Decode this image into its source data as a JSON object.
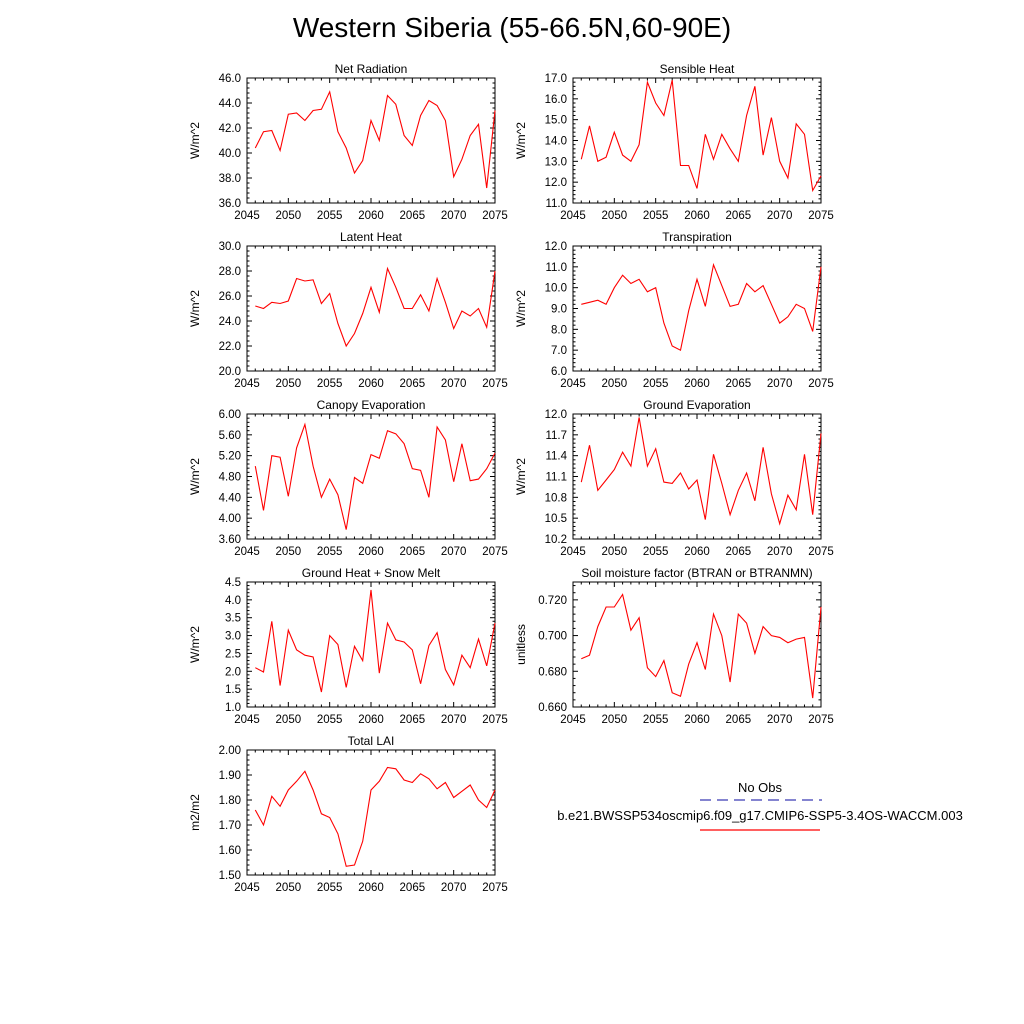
{
  "title": "Western Siberia (55-66.5N,60-90E)",
  "legend": {
    "obs_label": "No Obs",
    "obs_color": "#3b3bb5",
    "model_label": "b.e21.BWSSP534oscmip6.f09_g17.CMIP6-SSP5-3.4OS-WACCM.003",
    "model_color": "#ff0000"
  },
  "chart_data": [
    {
      "type": "line",
      "title": "Net Radiation",
      "ylabel": "W/m^2",
      "xlim": [
        2045,
        2075
      ],
      "ylim": [
        36.0,
        46.0
      ],
      "xticks": [
        2045,
        2050,
        2055,
        2060,
        2065,
        2070,
        2075
      ],
      "yticks": [
        36.0,
        38.0,
        40.0,
        42.0,
        44.0,
        46.0
      ],
      "ytick_labels": [
        "36.0",
        "38.0",
        "40.0",
        "42.0",
        "44.0",
        "46.0"
      ],
      "x": [
        2046,
        2047,
        2048,
        2049,
        2050,
        2051,
        2052,
        2053,
        2054,
        2055,
        2056,
        2057,
        2058,
        2059,
        2060,
        2061,
        2062,
        2063,
        2064,
        2065,
        2066,
        2067,
        2068,
        2069,
        2070,
        2071,
        2072,
        2073,
        2074,
        2075
      ],
      "series": [
        {
          "values": [
            40.4,
            41.7,
            41.8,
            40.2,
            43.1,
            43.2,
            42.6,
            43.4,
            43.5,
            44.9,
            41.7,
            40.4,
            38.4,
            39.4,
            42.6,
            41.0,
            44.6,
            43.9,
            41.4,
            40.6,
            43.0,
            44.2,
            43.8,
            42.6,
            38.1,
            39.5,
            41.4,
            42.3,
            37.2,
            43.4
          ]
        }
      ]
    },
    {
      "type": "line",
      "title": "Sensible Heat",
      "ylabel": "W/m^2",
      "xlim": [
        2045,
        2075
      ],
      "ylim": [
        11.0,
        17.0
      ],
      "xticks": [
        2045,
        2050,
        2055,
        2060,
        2065,
        2070,
        2075
      ],
      "yticks": [
        11.0,
        12.0,
        13.0,
        14.0,
        15.0,
        16.0,
        17.0
      ],
      "ytick_labels": [
        "11.0",
        "12.0",
        "13.0",
        "14.0",
        "15.0",
        "16.0",
        "17.0"
      ],
      "x": [
        2046,
        2047,
        2048,
        2049,
        2050,
        2051,
        2052,
        2053,
        2054,
        2055,
        2056,
        2057,
        2058,
        2059,
        2060,
        2061,
        2062,
        2063,
        2064,
        2065,
        2066,
        2067,
        2068,
        2069,
        2070,
        2071,
        2072,
        2073,
        2074,
        2075
      ],
      "series": [
        {
          "values": [
            13.1,
            14.7,
            13.0,
            13.2,
            14.4,
            13.3,
            13.0,
            13.8,
            16.8,
            15.8,
            15.2,
            16.9,
            12.8,
            12.8,
            11.7,
            14.3,
            13.1,
            14.3,
            13.6,
            13.0,
            15.2,
            16.6,
            13.3,
            15.1,
            13.0,
            12.2,
            14.8,
            14.3,
            11.6,
            12.3
          ]
        }
      ]
    },
    {
      "type": "line",
      "title": "Latent Heat",
      "ylabel": "W/m^2",
      "xlim": [
        2045,
        2075
      ],
      "ylim": [
        20.0,
        30.0
      ],
      "xticks": [
        2045,
        2050,
        2055,
        2060,
        2065,
        2070,
        2075
      ],
      "yticks": [
        20.0,
        22.0,
        24.0,
        26.0,
        28.0,
        30.0
      ],
      "ytick_labels": [
        "20.0",
        "22.0",
        "24.0",
        "26.0",
        "28.0",
        "30.0"
      ],
      "x": [
        2046,
        2047,
        2048,
        2049,
        2050,
        2051,
        2052,
        2053,
        2054,
        2055,
        2056,
        2057,
        2058,
        2059,
        2060,
        2061,
        2062,
        2063,
        2064,
        2065,
        2066,
        2067,
        2068,
        2069,
        2070,
        2071,
        2072,
        2073,
        2074,
        2075
      ],
      "series": [
        {
          "values": [
            25.2,
            25.0,
            25.5,
            25.4,
            25.6,
            27.4,
            27.2,
            27.3,
            25.4,
            26.2,
            23.8,
            22.0,
            23.0,
            24.6,
            26.7,
            24.7,
            28.2,
            26.7,
            25.0,
            25.0,
            26.1,
            24.8,
            27.4,
            25.5,
            23.4,
            24.8,
            24.4,
            25.0,
            23.5,
            28.0
          ]
        }
      ]
    },
    {
      "type": "line",
      "title": "Transpiration",
      "ylabel": "W/m^2",
      "xlim": [
        2045,
        2075
      ],
      "ylim": [
        6.0,
        12.0
      ],
      "xticks": [
        2045,
        2050,
        2055,
        2060,
        2065,
        2070,
        2075
      ],
      "yticks": [
        6.0,
        7.0,
        8.0,
        9.0,
        10.0,
        11.0,
        12.0
      ],
      "ytick_labels": [
        "6.0",
        "7.0",
        "8.0",
        "9.0",
        "10.0",
        "11.0",
        "12.0"
      ],
      "x": [
        2046,
        2047,
        2048,
        2049,
        2050,
        2051,
        2052,
        2053,
        2054,
        2055,
        2056,
        2057,
        2058,
        2059,
        2060,
        2061,
        2062,
        2063,
        2064,
        2065,
        2066,
        2067,
        2068,
        2069,
        2070,
        2071,
        2072,
        2073,
        2074,
        2075
      ],
      "series": [
        {
          "values": [
            9.2,
            9.3,
            9.4,
            9.2,
            10.0,
            10.6,
            10.2,
            10.4,
            9.8,
            10.0,
            8.3,
            7.2,
            7.0,
            8.9,
            10.4,
            9.1,
            11.1,
            10.1,
            9.1,
            9.2,
            10.2,
            9.8,
            10.1,
            9.2,
            8.3,
            8.6,
            9.2,
            9.0,
            7.9,
            11.0
          ]
        }
      ]
    },
    {
      "type": "line",
      "title": "Canopy Evaporation",
      "ylabel": "W/m^2",
      "xlim": [
        2045,
        2075
      ],
      "ylim": [
        3.6,
        6.0
      ],
      "xticks": [
        2045,
        2050,
        2055,
        2060,
        2065,
        2070,
        2075
      ],
      "yticks": [
        3.6,
        4.0,
        4.4,
        4.8,
        5.2,
        5.6,
        6.0
      ],
      "ytick_labels": [
        "3.60",
        "4.00",
        "4.40",
        "4.80",
        "5.20",
        "5.60",
        "6.00"
      ],
      "x": [
        2046,
        2047,
        2048,
        2049,
        2050,
        2051,
        2052,
        2053,
        2054,
        2055,
        2056,
        2057,
        2058,
        2059,
        2060,
        2061,
        2062,
        2063,
        2064,
        2065,
        2066,
        2067,
        2068,
        2069,
        2070,
        2071,
        2072,
        2073,
        2074,
        2075
      ],
      "series": [
        {
          "values": [
            5.0,
            4.15,
            5.2,
            5.17,
            4.42,
            5.35,
            5.8,
            5.0,
            4.4,
            4.75,
            4.45,
            3.78,
            4.78,
            4.67,
            5.22,
            5.15,
            5.68,
            5.62,
            5.43,
            4.95,
            4.92,
            4.4,
            5.75,
            5.5,
            4.7,
            5.43,
            4.72,
            4.75,
            4.95,
            5.25
          ]
        }
      ]
    },
    {
      "type": "line",
      "title": "Ground Evaporation",
      "ylabel": "W/m^2",
      "xlim": [
        2045,
        2075
      ],
      "ylim": [
        10.2,
        12.0
      ],
      "xticks": [
        2045,
        2050,
        2055,
        2060,
        2065,
        2070,
        2075
      ],
      "yticks": [
        10.2,
        10.5,
        10.8,
        11.1,
        11.4,
        11.7,
        12.0
      ],
      "ytick_labels": [
        "10.2",
        "10.5",
        "10.8",
        "11.1",
        "11.4",
        "11.7",
        "12.0"
      ],
      "x": [
        2046,
        2047,
        2048,
        2049,
        2050,
        2051,
        2052,
        2053,
        2054,
        2055,
        2056,
        2057,
        2058,
        2059,
        2060,
        2061,
        2062,
        2063,
        2064,
        2065,
        2066,
        2067,
        2068,
        2069,
        2070,
        2071,
        2072,
        2073,
        2074,
        2075
      ],
      "series": [
        {
          "values": [
            11.02,
            11.55,
            10.9,
            11.05,
            11.2,
            11.45,
            11.25,
            11.95,
            11.25,
            11.5,
            11.02,
            11.0,
            11.15,
            10.92,
            11.05,
            10.48,
            11.42,
            11.0,
            10.55,
            10.9,
            11.15,
            10.75,
            11.52,
            10.85,
            10.42,
            10.83,
            10.62,
            11.42,
            10.55,
            11.72
          ]
        }
      ]
    },
    {
      "type": "line",
      "title": "Ground Heat + Snow Melt",
      "ylabel": "W/m^2",
      "xlim": [
        2045,
        2075
      ],
      "ylim": [
        1.0,
        4.5
      ],
      "xticks": [
        2045,
        2050,
        2055,
        2060,
        2065,
        2070,
        2075
      ],
      "yticks": [
        1.0,
        1.5,
        2.0,
        2.5,
        3.0,
        3.5,
        4.0,
        4.5
      ],
      "ytick_labels": [
        "1.0",
        "1.5",
        "2.0",
        "2.5",
        "3.0",
        "3.5",
        "4.0",
        "4.5"
      ],
      "x": [
        2046,
        2047,
        2048,
        2049,
        2050,
        2051,
        2052,
        2053,
        2054,
        2055,
        2056,
        2057,
        2058,
        2059,
        2060,
        2061,
        2062,
        2063,
        2064,
        2065,
        2066,
        2067,
        2068,
        2069,
        2070,
        2071,
        2072,
        2073,
        2074,
        2075
      ],
      "series": [
        {
          "values": [
            2.1,
            1.98,
            3.4,
            1.6,
            3.15,
            2.6,
            2.45,
            2.4,
            1.42,
            3.0,
            2.75,
            1.55,
            2.7,
            2.3,
            4.28,
            1.95,
            3.35,
            2.88,
            2.82,
            2.6,
            1.65,
            2.72,
            3.08,
            2.05,
            1.62,
            2.45,
            2.1,
            2.9,
            2.15,
            3.35
          ]
        }
      ]
    },
    {
      "type": "line",
      "title": "Soil moisture factor (BTRAN or BTRANMN)",
      "ylabel": "unitless",
      "xlim": [
        2045,
        2075
      ],
      "ylim": [
        0.66,
        0.73
      ],
      "xticks": [
        2045,
        2050,
        2055,
        2060,
        2065,
        2070,
        2075
      ],
      "yticks": [
        0.66,
        0.68,
        0.7,
        0.72
      ],
      "ytick_labels": [
        "0.660",
        "0.680",
        "0.700",
        "0.720"
      ],
      "x": [
        2046,
        2047,
        2048,
        2049,
        2050,
        2051,
        2052,
        2053,
        2054,
        2055,
        2056,
        2057,
        2058,
        2059,
        2060,
        2061,
        2062,
        2063,
        2064,
        2065,
        2066,
        2067,
        2068,
        2069,
        2070,
        2071,
        2072,
        2073,
        2074,
        2075
      ],
      "series": [
        {
          "values": [
            0.687,
            0.689,
            0.705,
            0.716,
            0.716,
            0.723,
            0.703,
            0.71,
            0.682,
            0.677,
            0.686,
            0.668,
            0.666,
            0.684,
            0.696,
            0.681,
            0.712,
            0.7,
            0.674,
            0.712,
            0.707,
            0.69,
            0.705,
            0.7,
            0.699,
            0.696,
            0.698,
            0.699,
            0.665,
            0.716
          ]
        }
      ]
    },
    {
      "type": "line",
      "title": "Total LAI",
      "ylabel": "m2/m2",
      "xlim": [
        2045,
        2075
      ],
      "ylim": [
        1.5,
        2.0
      ],
      "xticks": [
        2045,
        2050,
        2055,
        2060,
        2065,
        2070,
        2075
      ],
      "yticks": [
        1.5,
        1.6,
        1.7,
        1.8,
        1.9,
        2.0
      ],
      "ytick_labels": [
        "1.50",
        "1.60",
        "1.70",
        "1.80",
        "1.90",
        "2.00"
      ],
      "x": [
        2046,
        2047,
        2048,
        2049,
        2050,
        2051,
        2052,
        2053,
        2054,
        2055,
        2056,
        2057,
        2058,
        2059,
        2060,
        2061,
        2062,
        2063,
        2064,
        2065,
        2066,
        2067,
        2068,
        2069,
        2070,
        2071,
        2072,
        2073,
        2074,
        2075
      ],
      "series": [
        {
          "values": [
            1.76,
            1.7,
            1.815,
            1.775,
            1.84,
            1.875,
            1.915,
            1.84,
            1.745,
            1.73,
            1.665,
            1.535,
            1.54,
            1.635,
            1.84,
            1.875,
            1.93,
            1.925,
            1.88,
            1.87,
            1.905,
            1.885,
            1.845,
            1.87,
            1.81,
            1.835,
            1.86,
            1.8,
            1.77,
            1.84
          ]
        }
      ]
    }
  ]
}
